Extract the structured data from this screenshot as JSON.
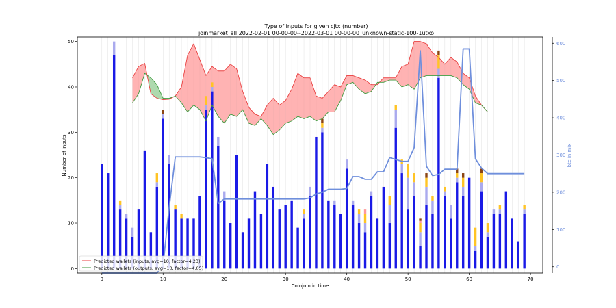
{
  "chart_data": {
    "type": "bar",
    "title_line1": "Type of inputs for given cjtx (number)",
    "title_line2": "joinmarket_all 2022-02-01 00-00-00--2022-03-01 00-00-00_unknown-static-100-1utxo",
    "xlabel": "Coinjoin in time",
    "ylabel": "Number of inputs",
    "ylabel_right": "btc in mix",
    "xlim": [
      -4,
      72
    ],
    "ylim": [
      -1,
      51
    ],
    "ylim_right": [
      -17,
      617
    ],
    "x_ticks": [
      0,
      10,
      20,
      30,
      40,
      50,
      60,
      70
    ],
    "y_ticks": [
      0,
      10,
      20,
      30,
      40,
      50
    ],
    "y_ticks_right": [
      0,
      100,
      200,
      300,
      400,
      500,
      600
    ],
    "legend_position": "lower-left",
    "colors": {
      "fresh": "#1a1ae6",
      "remix": "#aaaaee",
      "friends": "#ffc425",
      "other": "#ff9999",
      "dark": "#8b4513",
      "btc_line": "#6f8fdc",
      "inputs_line": "#e84040",
      "outputs_line": "#3e9a3e",
      "fill_red": "#ff8080",
      "fill_green": "#78c078"
    },
    "bar_stacks": [
      {
        "x": 0,
        "f": 23,
        "r": 0,
        "y": 0,
        "d": 0
      },
      {
        "x": 1,
        "f": 21,
        "r": 0,
        "y": 0,
        "d": 0
      },
      {
        "x": 2,
        "f": 47,
        "r": 3,
        "y": 0,
        "d": 0
      },
      {
        "x": 3,
        "f": 13,
        "r": 1,
        "y": 1,
        "d": 0
      },
      {
        "x": 4,
        "f": 11,
        "r": 1,
        "y": 0,
        "d": 0
      },
      {
        "x": 5,
        "f": 7,
        "r": 2,
        "y": 0,
        "d": 0
      },
      {
        "x": 6,
        "f": 13,
        "r": 0,
        "y": 0,
        "d": 0
      },
      {
        "x": 7,
        "f": 26,
        "r": 0,
        "y": 0,
        "d": 0
      },
      {
        "x": 8,
        "f": 8,
        "r": 0,
        "y": 0,
        "d": 0
      },
      {
        "x": 9,
        "f": 18,
        "r": 1,
        "y": 2,
        "d": 0
      },
      {
        "x": 10,
        "f": 33,
        "r": 1,
        "y": 0,
        "d": 1
      },
      {
        "x": 11,
        "f": 23,
        "r": 2,
        "y": 0,
        "d": 0
      },
      {
        "x": 12,
        "f": 13,
        "r": 0,
        "y": 1,
        "d": 0
      },
      {
        "x": 13,
        "f": 11,
        "r": 0,
        "y": 1,
        "d": 0
      },
      {
        "x": 14,
        "f": 11,
        "r": 0,
        "y": 0,
        "d": 0
      },
      {
        "x": 15,
        "f": 11,
        "r": 0,
        "y": 0,
        "d": 0
      },
      {
        "x": 16,
        "f": 16,
        "r": 0,
        "y": 0,
        "d": 0
      },
      {
        "x": 17,
        "f": 35,
        "r": 1,
        "y": 2,
        "d": 0
      },
      {
        "x": 18,
        "f": 39,
        "r": 1,
        "y": 1,
        "d": 0
      },
      {
        "x": 19,
        "f": 27,
        "r": 2,
        "y": 0,
        "d": 0
      },
      {
        "x": 20,
        "f": 15,
        "r": 2,
        "y": 0,
        "d": 0
      },
      {
        "x": 21,
        "f": 10,
        "r": 0,
        "y": 0,
        "d": 0
      },
      {
        "x": 22,
        "f": 25,
        "r": 0,
        "y": 0,
        "d": 0
      },
      {
        "x": 23,
        "f": 8,
        "r": 0,
        "y": 0,
        "d": 0
      },
      {
        "x": 24,
        "f": 11,
        "r": 0,
        "y": 0,
        "d": 0
      },
      {
        "x": 25,
        "f": 17,
        "r": 0,
        "y": 0,
        "d": 0
      },
      {
        "x": 26,
        "f": 12,
        "r": 0,
        "y": 0,
        "d": 0
      },
      {
        "x": 27,
        "f": 23,
        "r": 0,
        "y": 0,
        "d": 0
      },
      {
        "x": 28,
        "f": 18,
        "r": 0,
        "y": 0,
        "d": 0
      },
      {
        "x": 29,
        "f": 13,
        "r": 0,
        "y": 0,
        "d": 0
      },
      {
        "x": 30,
        "f": 14,
        "r": 0,
        "y": 0,
        "d": 0
      },
      {
        "x": 31,
        "f": 15,
        "r": 0,
        "y": 0,
        "d": 0
      },
      {
        "x": 32,
        "f": 9,
        "r": 0,
        "y": 0,
        "d": 0
      },
      {
        "x": 33,
        "f": 11,
        "r": 1,
        "y": 1,
        "d": 0
      },
      {
        "x": 34,
        "f": 16,
        "r": 2,
        "y": 0,
        "d": 0
      },
      {
        "x": 35,
        "f": 29,
        "r": 0,
        "y": 0,
        "d": 0
      },
      {
        "x": 36,
        "f": 30,
        "r": 1,
        "y": 1,
        "d": 1
      },
      {
        "x": 37,
        "f": 15,
        "r": 0,
        "y": 0,
        "d": 0
      },
      {
        "x": 38,
        "f": 14,
        "r": 1,
        "y": 0,
        "d": 0
      },
      {
        "x": 39,
        "f": 12,
        "r": 0,
        "y": 0,
        "d": 0
      },
      {
        "x": 40,
        "f": 22,
        "r": 2,
        "y": 0,
        "d": 0
      },
      {
        "x": 41,
        "f": 14,
        "r": 1,
        "y": 0,
        "d": 0
      },
      {
        "x": 42,
        "f": 10,
        "r": 2,
        "y": 1,
        "d": 0
      },
      {
        "x": 43,
        "f": 8,
        "r": 2,
        "y": 2,
        "o": 1,
        "d": 0
      },
      {
        "x": 44,
        "f": 16,
        "r": 1,
        "y": 0,
        "d": 0
      },
      {
        "x": 45,
        "f": 11,
        "r": 0,
        "y": 0,
        "d": 0
      },
      {
        "x": 46,
        "f": 18,
        "r": 0,
        "y": 0,
        "d": 0
      },
      {
        "x": 47,
        "f": 10,
        "r": 4,
        "y": 2,
        "d": 0
      },
      {
        "x": 48,
        "f": 31,
        "r": 4,
        "y": 1,
        "d": 0
      },
      {
        "x": 49,
        "f": 21,
        "r": 2,
        "y": 1,
        "d": 0
      },
      {
        "x": 50,
        "f": 13,
        "r": 7,
        "y": 3,
        "d": 0
      },
      {
        "x": 51,
        "f": 16,
        "r": 3,
        "y": 2,
        "d": 0
      },
      {
        "x": 52,
        "f": 5,
        "r": 3,
        "y": 2,
        "o": 0.5,
        "d": 0.5
      },
      {
        "x": 53,
        "f": 14,
        "r": 4,
        "y": 2,
        "d": 1
      },
      {
        "x": 54,
        "f": 12,
        "r": 3,
        "y": 1,
        "d": 0
      },
      {
        "x": 55,
        "f": 42,
        "r": 2,
        "y": 3,
        "d": 1
      },
      {
        "x": 56,
        "f": 16,
        "r": 1,
        "y": 1,
        "d": 0
      },
      {
        "x": 57,
        "f": 11,
        "r": 3,
        "y": 0,
        "d": 0
      },
      {
        "x": 58,
        "f": 19,
        "r": 1,
        "y": 1,
        "d": 1
      },
      {
        "x": 59,
        "f": 16,
        "r": 2,
        "y": 2,
        "d": 1
      },
      {
        "x": 60,
        "f": 20,
        "r": 0,
        "y": 0,
        "d": 0
      },
      {
        "x": 61,
        "f": 4,
        "r": 1,
        "y": 4,
        "d": 0
      },
      {
        "x": 62,
        "f": 17,
        "r": 2,
        "y": 2,
        "d": 1
      },
      {
        "x": 63,
        "f": 7,
        "r": 1,
        "y": 2,
        "d": 0
      },
      {
        "x": 64,
        "f": 12,
        "r": 1,
        "y": 0,
        "d": 0
      },
      {
        "x": 65,
        "f": 12,
        "r": 1,
        "y": 1,
        "d": 0
      },
      {
        "x": 66,
        "f": 17,
        "r": 0,
        "y": 0,
        "d": 0
      },
      {
        "x": 67,
        "f": 11,
        "r": 0,
        "y": 0,
        "d": 0
      },
      {
        "x": 68,
        "f": 6,
        "r": 0,
        "y": 0,
        "d": 0
      },
      {
        "x": 69,
        "f": 12,
        "r": 1,
        "y": 1,
        "d": 0
      }
    ],
    "series": [
      {
        "name": "Predicted wallets (inputs, avg=10, factor=4.23)",
        "x": [
          5,
          6,
          7,
          8,
          9,
          10,
          11,
          12,
          13,
          14,
          15,
          16,
          17,
          18,
          19,
          20,
          21,
          22,
          23,
          24,
          25,
          26,
          27,
          28,
          29,
          30,
          31,
          32,
          33,
          34,
          35,
          36,
          37,
          38,
          39,
          40,
          41,
          42,
          43,
          44,
          45,
          46,
          47,
          48,
          49,
          50,
          51,
          52,
          53,
          54,
          55,
          56,
          57,
          58,
          59,
          60,
          61,
          62,
          63
        ],
        "values": [
          42,
          44.5,
          45.2,
          38.5,
          37.5,
          37.2,
          37.3,
          38,
          40,
          47,
          49.5,
          46,
          42.5,
          44.5,
          43.5,
          43.5,
          45,
          44,
          39,
          35.5,
          34,
          33.5,
          36,
          37.5,
          36,
          37,
          39.5,
          43,
          42,
          42,
          38,
          37.5,
          39,
          40.5,
          40,
          42.5,
          42.5,
          42,
          41.5,
          40.5,
          40.5,
          42,
          42,
          42,
          44.5,
          45,
          50,
          50,
          49.5,
          47.5,
          46.5,
          45,
          46.5,
          45.5,
          43,
          42,
          38,
          36,
          34.5
        ]
      },
      {
        "name": "Predicted wallets (outputs, avg=10, factor=4.05)",
        "x": [
          5,
          6,
          7,
          8,
          9,
          10,
          11,
          12,
          13,
          14,
          15,
          16,
          17,
          18,
          19,
          20,
          21,
          22,
          23,
          24,
          25,
          26,
          27,
          28,
          29,
          30,
          31,
          32,
          33,
          34,
          35,
          36,
          37,
          38,
          39,
          40,
          41,
          42,
          43,
          44,
          45,
          46,
          47,
          48,
          49,
          50,
          51,
          52,
          53,
          54,
          55,
          56,
          57,
          58,
          59,
          60,
          61,
          62,
          63
        ],
        "values": [
          36.5,
          38.5,
          43,
          42,
          40.5,
          37.5,
          37.5,
          38,
          36.5,
          34.5,
          36,
          35,
          32.5,
          36,
          33.5,
          32,
          34,
          33.5,
          35,
          32,
          31.5,
          33,
          31.5,
          29.5,
          30.5,
          32,
          32.5,
          33.5,
          33,
          33.5,
          32.5,
          33,
          34.5,
          34.5,
          37,
          40.5,
          41,
          39.5,
          38.5,
          39,
          41,
          41,
          41.5,
          41.5,
          40,
          40.5,
          39.5,
          42,
          42.5,
          42.5,
          42.5,
          42.5,
          42.5,
          42,
          40.5,
          39.5,
          36.5,
          36,
          34.5
        ]
      },
      {
        "name": "btc in mix",
        "axis": "right",
        "x": [
          0,
          1,
          2,
          3,
          4,
          5,
          6,
          7,
          8,
          9,
          10,
          11,
          12,
          13,
          14,
          15,
          16,
          17,
          18,
          19,
          20,
          21,
          22,
          23,
          24,
          25,
          26,
          27,
          28,
          29,
          30,
          31,
          32,
          33,
          34,
          35,
          36,
          37,
          38,
          39,
          40,
          41,
          42,
          43,
          44,
          45,
          46,
          47,
          48,
          49,
          50,
          51,
          52,
          53,
          54,
          55,
          56,
          57,
          58,
          59,
          60,
          61,
          62,
          63,
          64,
          65,
          66,
          67,
          68,
          69
        ],
        "values": [
          -50,
          -45,
          -40,
          -35,
          -30,
          -28,
          -25,
          -22,
          -20,
          -18,
          5,
          160,
          295,
          295,
          295,
          295,
          295,
          293,
          290,
          170,
          182,
          182,
          182,
          182,
          182,
          182,
          182,
          182,
          182,
          182,
          182,
          182,
          182,
          182,
          185,
          195,
          200,
          208,
          208,
          208,
          210,
          242,
          242,
          235,
          235,
          255,
          255,
          293,
          288,
          283,
          283,
          320,
          580,
          270,
          245,
          248,
          262,
          262,
          262,
          585,
          585,
          290,
          265,
          250,
          250,
          250,
          250,
          250,
          250,
          250
        ]
      }
    ]
  }
}
